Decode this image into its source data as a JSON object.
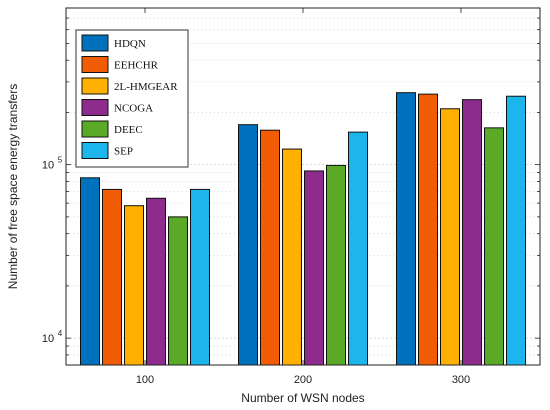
{
  "chart_data": {
    "type": "bar",
    "title": "",
    "xlabel": "Number of WSN nodes",
    "ylabel": "Number of free space energy transfers",
    "y_scale": "log",
    "ylim": [
      7000,
      800000
    ],
    "grid": true,
    "legend_position": "top-left",
    "categories": [
      "100",
      "200",
      "300"
    ],
    "y_tick_labels": [
      {
        "value": 10000,
        "base": "10",
        "exp": "4"
      },
      {
        "value": 100000,
        "base": "10",
        "exp": "5"
      }
    ],
    "series": [
      {
        "name": "HDQN",
        "color": "#0072BD",
        "values": [
          84000,
          170000,
          260000
        ]
      },
      {
        "name": "EEHCHR",
        "color": "#F25C05",
        "values": [
          72000,
          158000,
          255000
        ]
      },
      {
        "name": "2L-HMGEAR",
        "color": "#FFB000",
        "values": [
          58000,
          123000,
          210000
        ]
      },
      {
        "name": "NCOGA",
        "color": "#8E2C8E",
        "values": [
          64000,
          92000,
          237000
        ]
      },
      {
        "name": "DEEC",
        "color": "#5AAA28",
        "values": [
          50000,
          99000,
          163000
        ]
      },
      {
        "name": "SEP",
        "color": "#1CB5EC",
        "values": [
          72000,
          154000,
          248000
        ]
      }
    ]
  }
}
